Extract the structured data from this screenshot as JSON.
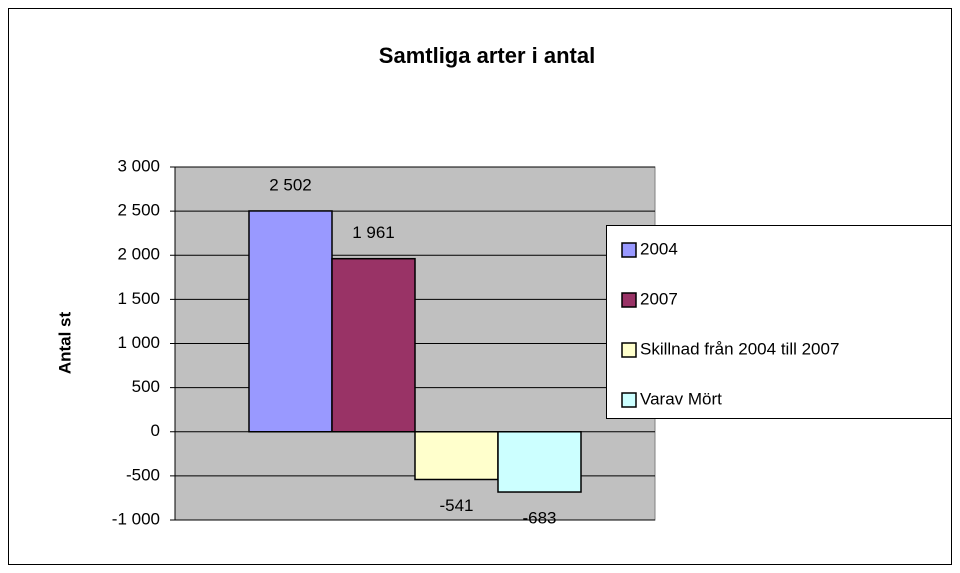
{
  "chart_data": {
    "type": "bar",
    "title": "Samtliga arter i antal",
    "ylabel": "Antal st",
    "categories": [
      null
    ],
    "series": [
      {
        "name": "2004",
        "color": "#9999ff",
        "values": [
          2502
        ],
        "value_labels": [
          "2 502"
        ]
      },
      {
        "name": "2007",
        "color": "#993366",
        "values": [
          1961
        ],
        "value_labels": [
          "1 961"
        ]
      },
      {
        "name": "Skillnad från 2004 till 2007",
        "color": "#ffffcc",
        "values": [
          -541
        ],
        "value_labels": [
          "-541"
        ]
      },
      {
        "name": "Varav Mört",
        "color": "#ccffff",
        "values": [
          -683
        ],
        "value_labels": [
          "-683"
        ]
      }
    ],
    "ylim": [
      -1000,
      3000
    ],
    "yticks": [
      {
        "value": -1000,
        "label": "-1 000"
      },
      -500,
      0,
      500,
      {
        "value": 1000,
        "label": "1 000"
      },
      {
        "value": 1500,
        "label": "1 500"
      },
      {
        "value": 2000,
        "label": "2 000"
      },
      {
        "value": 2500,
        "label": "2 500"
      },
      {
        "value": 3000,
        "label": "3 000"
      }
    ],
    "grid": true,
    "legend": "right"
  }
}
